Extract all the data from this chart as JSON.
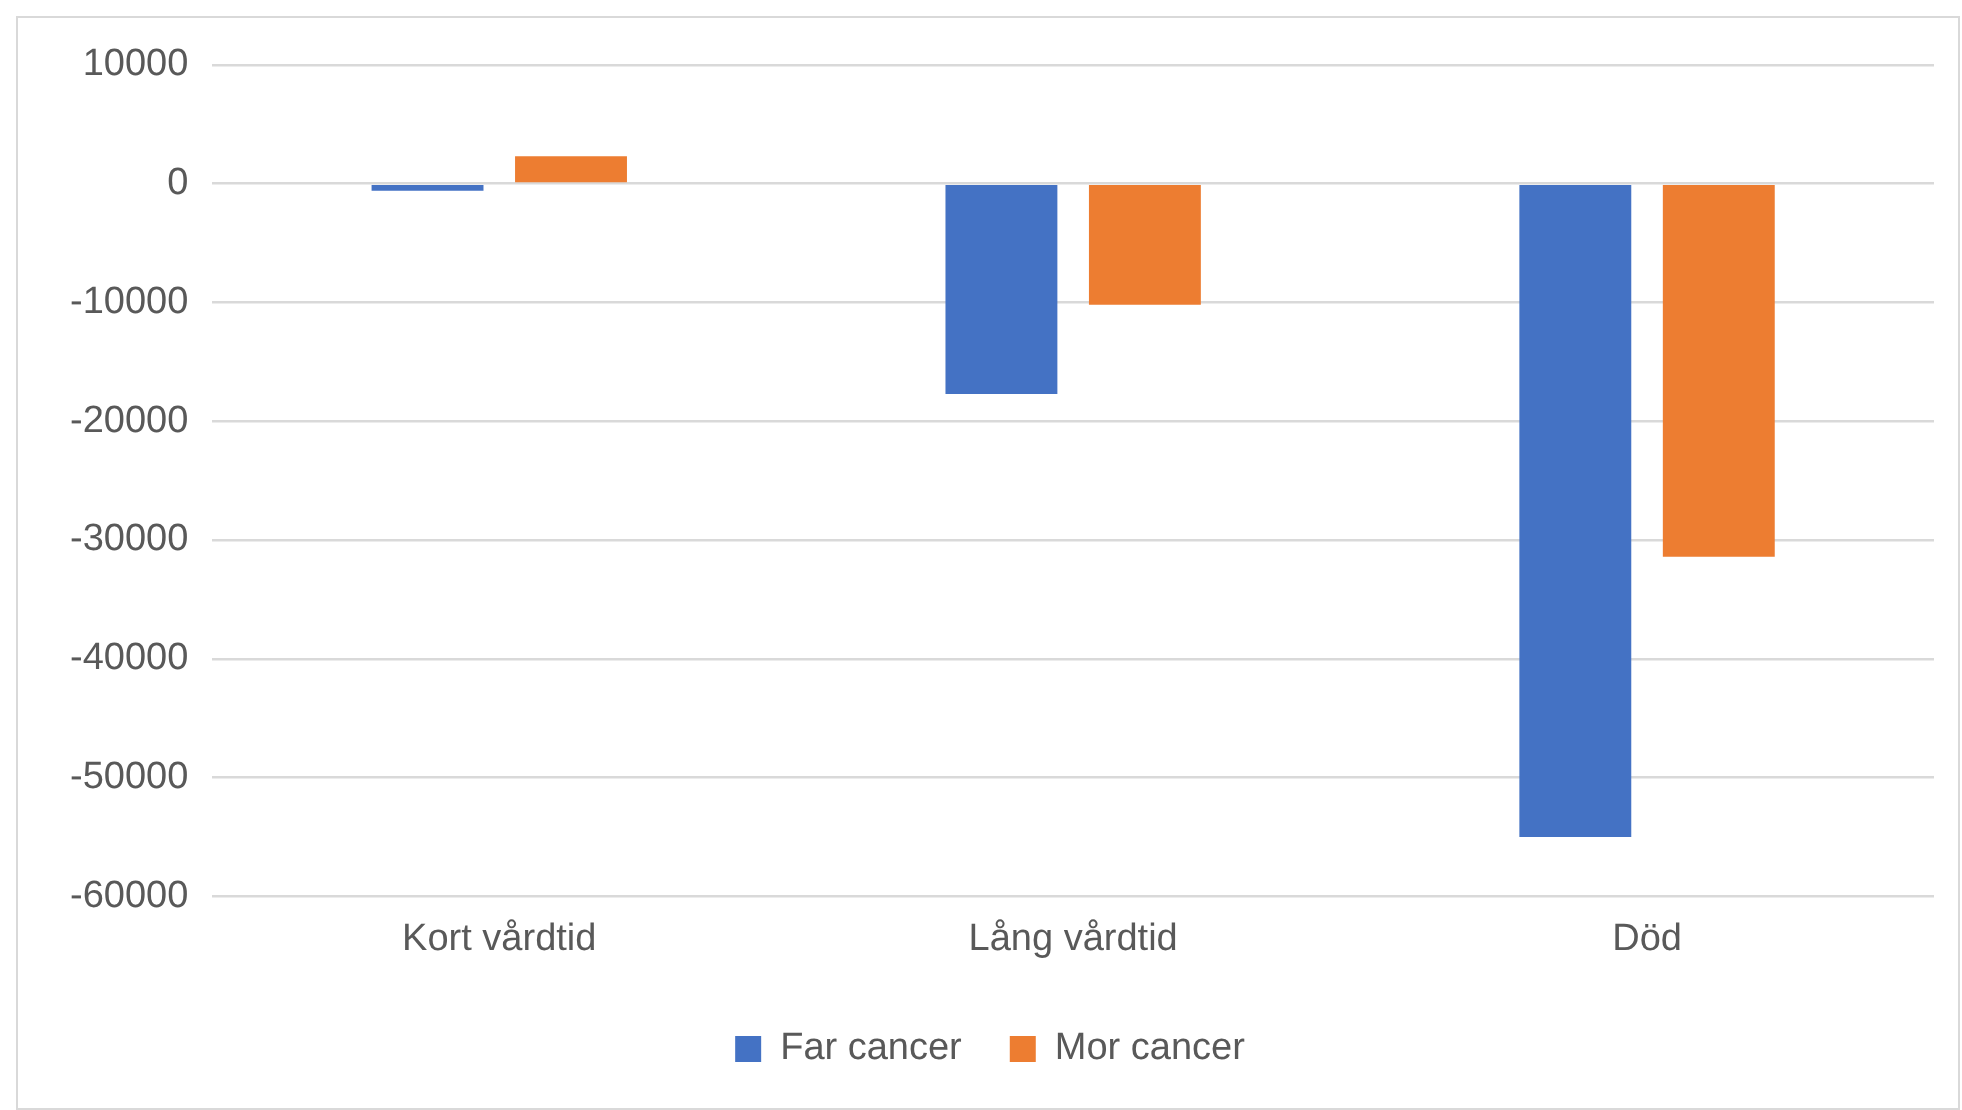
{
  "chart_data": {
    "type": "bar",
    "categories": [
      "Kort vårdtid",
      "Lång vårdtid",
      "Död"
    ],
    "series": [
      {
        "name": "Far cancer",
        "color": "#4472c4",
        "values": [
          -600,
          -17700,
          -55000
        ]
      },
      {
        "name": "Mor cancer",
        "color": "#ed7d31",
        "values": [
          2300,
          -10200,
          -31400
        ]
      }
    ],
    "ylim": [
      -60000,
      10000
    ],
    "yticks": [
      -60000,
      -50000,
      -40000,
      -30000,
      -20000,
      -10000,
      0,
      10000
    ],
    "grid": "y",
    "legend": "bottom"
  }
}
